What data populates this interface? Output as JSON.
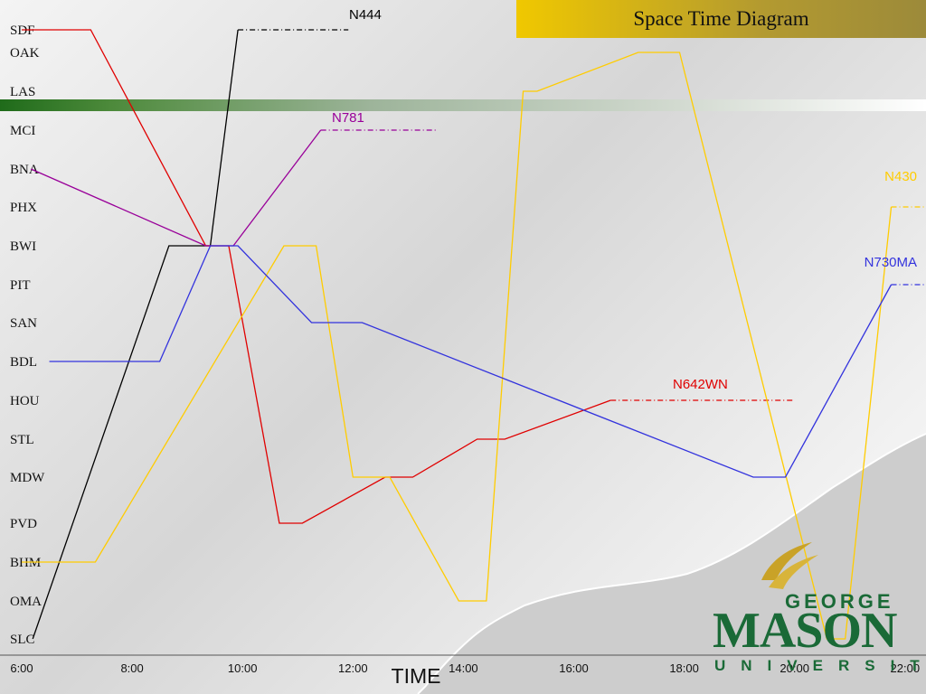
{
  "slide": {
    "title": "Space Time Diagram",
    "logo": {
      "line1": "GEORGE",
      "line2": "MASON",
      "line3": "UNIVERSITY"
    }
  },
  "colors": {
    "N444": "#000000",
    "N642WN": "#e00000",
    "N781": "#990099",
    "N430": "#ffcc00",
    "N730MA": "#3333dd",
    "title_bar": "#d9b300",
    "logo_green": "#1a6a37",
    "logo_gold": "#c9a227"
  },
  "chart_data": {
    "type": "line",
    "title": "Space Time Diagram",
    "xlabel": "TIME",
    "ylabel": "",
    "x_ticks": [
      "6:00",
      "8:00",
      "10:00",
      "12:00",
      "14:00",
      "16:00",
      "18:00",
      "20:00",
      "22:00"
    ],
    "x_range": [
      "6:00",
      "22:30"
    ],
    "stations": [
      "SDF",
      "OAK",
      "LAS",
      "MCI",
      "BNA",
      "PHX",
      "BWI",
      "PIT",
      "SAN",
      "BDL",
      "HOU",
      "STL",
      "MDW",
      "PVD",
      "BHM",
      "OMA",
      "SLC"
    ],
    "series": [
      {
        "name": "N444",
        "points": [
          [
            "6:12",
            "SLC"
          ],
          [
            "8:40",
            "BWI"
          ],
          [
            "9:25",
            "BWI"
          ],
          [
            "9:55",
            "SDF"
          ],
          [
            "11:55",
            "SDF"
          ]
        ],
        "continues_from": "9:55"
      },
      {
        "name": "N642WN",
        "points": [
          [
            "6:00",
            "SDF"
          ],
          [
            "7:15",
            "SDF"
          ],
          [
            "9:20",
            "BWI"
          ],
          [
            "9:45",
            "BWI"
          ],
          [
            "10:40",
            "PVD"
          ],
          [
            "11:05",
            "PVD"
          ],
          [
            "12:35",
            "MDW"
          ],
          [
            "13:05",
            "MDW"
          ],
          [
            "14:15",
            "STL"
          ],
          [
            "14:45",
            "STL"
          ],
          [
            "16:40",
            "HOU"
          ],
          [
            "20:00",
            "HOU"
          ]
        ],
        "continues_from": "16:40"
      },
      {
        "name": "N781",
        "points": [
          [
            "6:10",
            "BNA"
          ],
          [
            "9:20",
            "BWI"
          ],
          [
            "9:50",
            "BWI"
          ],
          [
            "11:25",
            "MCI"
          ],
          [
            "13:30",
            "MCI"
          ]
        ],
        "continues_from": "11:25"
      },
      {
        "name": "N430",
        "points": [
          [
            "6:00",
            "BHM"
          ],
          [
            "7:20",
            "BHM"
          ],
          [
            "10:45",
            "BWI"
          ],
          [
            "11:20",
            "BWI"
          ],
          [
            "12:00",
            "MDW"
          ],
          [
            "12:40",
            "MDW"
          ],
          [
            "13:55",
            "OMA"
          ],
          [
            "14:25",
            "OMA"
          ],
          [
            "15:05",
            "LAS"
          ],
          [
            "15:20",
            "LAS"
          ],
          [
            "17:10",
            "OAK"
          ],
          [
            "17:55",
            "OAK"
          ],
          [
            "20:35",
            "SLC"
          ],
          [
            "20:55",
            "SLC"
          ],
          [
            "21:45",
            "PHX"
          ],
          [
            "22:30",
            "PHX"
          ]
        ],
        "continues_from": "21:45"
      },
      {
        "name": "N730MA",
        "points": [
          [
            "6:30",
            "BDL"
          ],
          [
            "8:30",
            "BDL"
          ],
          [
            "9:25",
            "BWI"
          ],
          [
            "9:55",
            "BWI"
          ],
          [
            "11:15",
            "SAN"
          ],
          [
            "12:10",
            "SAN"
          ],
          [
            "19:15",
            "MDW"
          ],
          [
            "19:50",
            "MDW"
          ],
          [
            "21:45",
            "PIT"
          ],
          [
            "22:30",
            "PIT"
          ]
        ],
        "continues_from": "21:45"
      }
    ]
  }
}
